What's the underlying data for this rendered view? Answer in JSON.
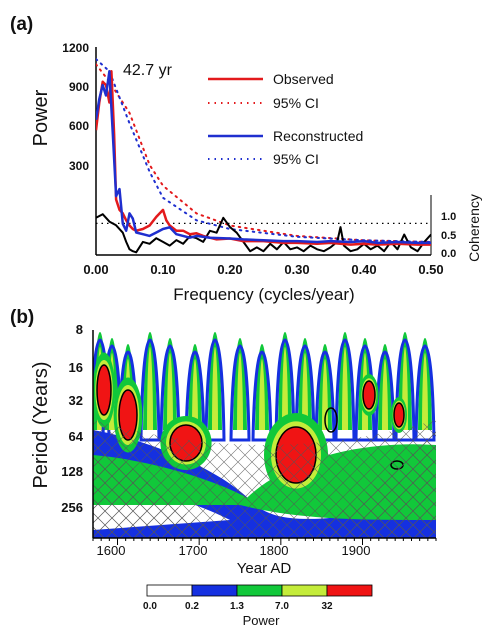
{
  "chart_data": [
    {
      "panel_label": "(a)",
      "type": "line",
      "ylabel": "Power",
      "xlabel": "Frequency (cycles/year)",
      "right_ylabel": "Coherency",
      "xlim": [
        0,
        0.5
      ],
      "ylim": [
        0,
        1200
      ],
      "xticks": [
        "0.00",
        "0.10",
        "0.20",
        "0.30",
        "0.40",
        "0.50"
      ],
      "yticks": [
        "300",
        "600",
        "900",
        "1200"
      ],
      "right_yticks": [
        "0.0",
        "0.5",
        "1.0"
      ],
      "coherency_range": [
        0,
        1
      ],
      "peak_annotation": "42.7 yr",
      "legend": {
        "observed": "Observed",
        "obs_ci": "95% CI",
        "reconstructed": "Reconstructed",
        "rec_ci": "95% CI"
      },
      "colors": {
        "observed": "#e31a1c",
        "reconstructed": "#1f2fcf",
        "coherency": "#000000"
      },
      "series": [
        {
          "name": "Observed",
          "style": "solid",
          "color": "#e31a1c",
          "x": [
            0.0,
            0.005,
            0.01,
            0.015,
            0.02,
            0.023,
            0.027,
            0.03,
            0.035,
            0.04,
            0.045,
            0.05,
            0.055,
            0.06,
            0.07,
            0.08,
            0.09,
            0.1,
            0.105,
            0.11,
            0.12,
            0.13,
            0.14,
            0.15,
            0.16,
            0.18,
            0.2,
            0.22,
            0.25,
            0.28,
            0.3,
            0.33,
            0.35,
            0.38,
            0.4,
            0.42,
            0.45,
            0.48,
            0.5
          ],
          "y": [
            720,
            880,
            1000,
            980,
            880,
            1060,
            700,
            320,
            260,
            240,
            200,
            170,
            150,
            140,
            150,
            170,
            220,
            260,
            200,
            170,
            140,
            140,
            120,
            125,
            110,
            90,
            95,
            80,
            80,
            70,
            70,
            65,
            70,
            60,
            65,
            60,
            65,
            60,
            60
          ]
        },
        {
          "name": "95% CI",
          "style": "dotted",
          "color": "#e31a1c",
          "x": [
            0.0,
            0.02,
            0.05,
            0.08,
            0.1,
            0.15,
            0.2,
            0.3,
            0.4,
            0.5
          ],
          "y": [
            1100,
            1000,
            820,
            520,
            400,
            240,
            170,
            110,
            85,
            75
          ]
        },
        {
          "name": "Reconstructed",
          "style": "solid",
          "color": "#1f2fcf",
          "x": [
            0.0,
            0.005,
            0.01,
            0.015,
            0.02,
            0.025,
            0.03,
            0.035,
            0.04,
            0.045,
            0.05,
            0.055,
            0.06,
            0.07,
            0.08,
            0.09,
            0.1,
            0.11,
            0.12,
            0.13,
            0.14,
            0.15,
            0.17,
            0.2,
            0.22,
            0.25,
            0.28,
            0.3,
            0.33,
            0.35,
            0.38,
            0.4,
            0.42,
            0.45,
            0.48,
            0.5
          ],
          "y": [
            780,
            900,
            980,
            920,
            1060,
            700,
            340,
            380,
            180,
            140,
            240,
            210,
            130,
            120,
            110,
            130,
            150,
            160,
            120,
            110,
            100,
            110,
            100,
            95,
            90,
            85,
            80,
            80,
            75,
            80,
            75,
            80,
            70,
            75,
            70,
            70
          ]
        },
        {
          "name": "95% CI",
          "style": "dotted",
          "color": "#1f2fcf",
          "x": [
            0.0,
            0.02,
            0.05,
            0.08,
            0.1,
            0.15,
            0.2,
            0.3,
            0.4,
            0.5
          ],
          "y": [
            1130,
            1060,
            760,
            480,
            330,
            200,
            150,
            105,
            85,
            75
          ]
        },
        {
          "name": "Coherency",
          "style": "solid",
          "color": "#000000",
          "axis": "right",
          "x": [
            0.0,
            0.01,
            0.02,
            0.03,
            0.04,
            0.045,
            0.05,
            0.055,
            0.06,
            0.07,
            0.08,
            0.09,
            0.1,
            0.11,
            0.12,
            0.13,
            0.14,
            0.15,
            0.16,
            0.17,
            0.18,
            0.19,
            0.2,
            0.21,
            0.22,
            0.23,
            0.24,
            0.25,
            0.26,
            0.27,
            0.28,
            0.29,
            0.3,
            0.31,
            0.32,
            0.33,
            0.34,
            0.35,
            0.36,
            0.365,
            0.37,
            0.38,
            0.39,
            0.4,
            0.41,
            0.42,
            0.43,
            0.44,
            0.45,
            0.46,
            0.47,
            0.48,
            0.49,
            0.5
          ],
          "y": [
            0.95,
            1.05,
            0.85,
            0.75,
            0.55,
            0.3,
            0.1,
            0.05,
            0.02,
            0.3,
            0.25,
            0.4,
            0.3,
            0.2,
            0.35,
            0.25,
            0.45,
            0.4,
            0.3,
            0.6,
            0.55,
            0.95,
            0.7,
            0.55,
            0.3,
            0.05,
            0.15,
            0.05,
            0.25,
            0.1,
            0.3,
            0.1,
            0.15,
            0.05,
            0.2,
            0.1,
            0.05,
            0.15,
            0.3,
            0.7,
            0.2,
            0.05,
            0.1,
            0.25,
            0.1,
            0.2,
            0.05,
            0.3,
            0.1,
            0.5,
            0.15,
            0.05,
            0.3,
            0.5
          ]
        }
      ],
      "coherency_threshold": 0.8
    },
    {
      "panel_label": "(b)",
      "type": "heatmap",
      "ylabel": "Period (Years)",
      "xlabel": "Year AD",
      "xticks": [
        "1600",
        "1700",
        "1800",
        "1900"
      ],
      "yticks": [
        "8",
        "16",
        "32",
        "64",
        "128",
        "256"
      ],
      "xlim": [
        1570,
        1990
      ],
      "colorbar": {
        "label": "Power",
        "ticks": [
          "0.0",
          "0.2",
          "1.3",
          "7.0",
          "32"
        ],
        "colors": [
          "#ffffff",
          "#1530e0",
          "#11c83a",
          "#c4ec3a",
          "#f01414"
        ]
      }
    }
  ]
}
